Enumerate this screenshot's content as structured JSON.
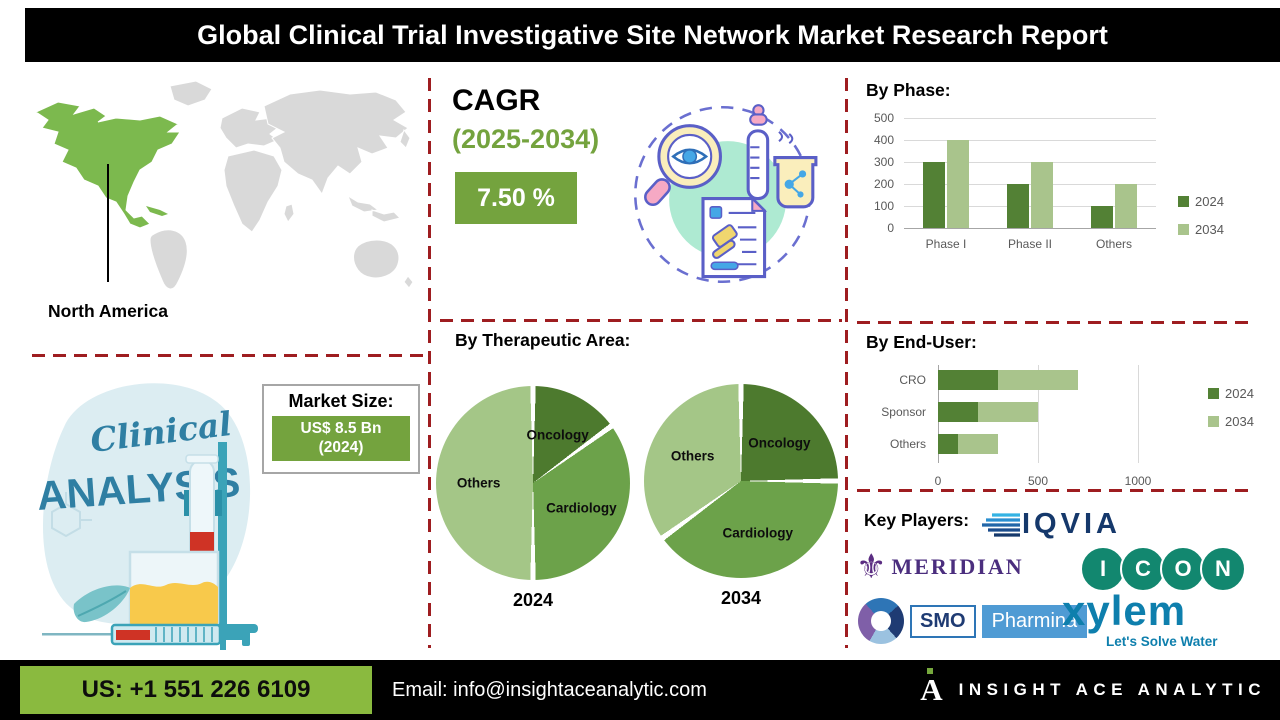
{
  "title": "Global Clinical Trial Investigative Site Network Market Research Report",
  "region": {
    "label": "North America"
  },
  "cagr": {
    "heading": "CAGR",
    "period": "(2025-2034)",
    "value": "7.50 %"
  },
  "market_size": {
    "label": "Market Size:",
    "value": "US$ 8.5 Bn",
    "year": "(2024)"
  },
  "analysis_art": {
    "line1": "Clinical",
    "line2": "ANALYSIS"
  },
  "chart_data": [
    {
      "type": "bar",
      "title": "By Phase:",
      "categories": [
        "Phase I",
        "Phase II",
        "Others"
      ],
      "series": [
        {
          "name": "2024",
          "values": [
            300,
            200,
            100
          ],
          "color": "#538135"
        },
        {
          "name": "2034",
          "values": [
            400,
            300,
            200
          ],
          "color": "#a9c48c"
        }
      ],
      "ylim": [
        0,
        500
      ],
      "yticks": [
        0,
        100,
        200,
        300,
        400,
        500
      ],
      "legend_position": "right",
      "grid": true
    },
    {
      "type": "pie",
      "title": "By Therapeutic Area:",
      "pies": [
        {
          "year_label": "2024",
          "slices": [
            {
              "label": "Oncology",
              "value": 15
            },
            {
              "label": "Cardiology",
              "value": 35
            },
            {
              "label": "Others",
              "value": 50
            }
          ]
        },
        {
          "year_label": "2034",
          "slices": [
            {
              "label": "Oncology",
              "value": 25
            },
            {
              "label": "Cardiology",
              "value": 40
            },
            {
              "label": "Others",
              "value": 35
            }
          ]
        }
      ],
      "colors": {
        "Oncology": "#4d7a2e",
        "Cardiology": "#6ca24a",
        "Others": "#a4c687"
      }
    },
    {
      "type": "stacked-hbar",
      "title": "By End-User:",
      "categories": [
        "CRO",
        "Sponsor",
        "Others"
      ],
      "series": [
        {
          "name": "2024",
          "values": [
            300,
            200,
            100
          ],
          "color": "#538135"
        },
        {
          "name": "2034",
          "values": [
            400,
            300,
            200
          ],
          "color": "#a9c48c"
        }
      ],
      "xticks": [
        0,
        500,
        1000
      ],
      "xlim": [
        0,
        1250
      ],
      "legend_position": "right",
      "grid": true
    }
  ],
  "key_players": {
    "heading": "Key Players:",
    "iqvia": {
      "text": "IQVIA"
    },
    "meridian": {
      "text": "MERIDIAN",
      "fleur": "⚜"
    },
    "icon": {
      "letters": [
        "I",
        "C",
        "O",
        "N"
      ]
    },
    "smo": {
      "smo": "SMO",
      "pharmina": "Pharmina"
    },
    "xylem": {
      "text": "xylem",
      "tagline": "Let's Solve Water"
    }
  },
  "footer": {
    "phone": "US: +1 551 226 6109",
    "email": "Email: info@insightaceanalytic.com",
    "brand": "INSIGHT ACE ANALYTIC",
    "logo_letter": "A"
  },
  "colors": {
    "accent_green": "#74a33e",
    "map_green": "#7cb94e",
    "bar_2024": "#538135",
    "bar_2034": "#a9c48c",
    "dash_red": "#9e1d20",
    "footer_green": "#8aba3f"
  }
}
